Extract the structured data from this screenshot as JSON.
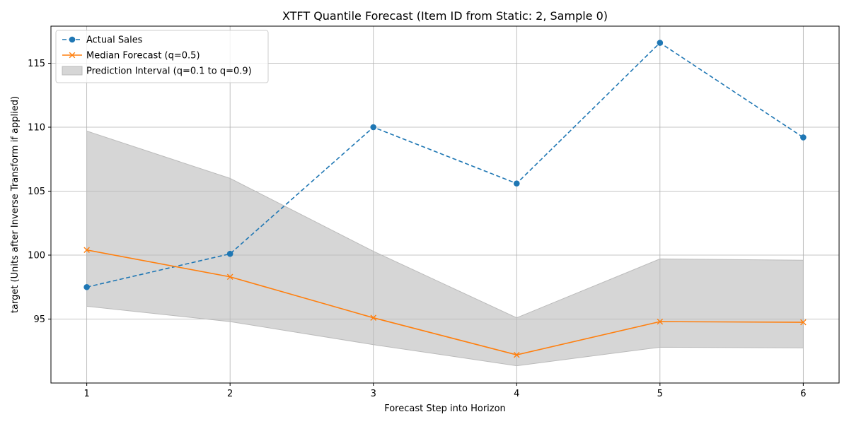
{
  "chart_data": {
    "type": "line",
    "title": "XTFT Quantile Forecast (Item ID from Static: 2, Sample 0)",
    "xlabel": "Forecast Step into Horizon",
    "ylabel": "target (Units after Inverse Transform if applied)",
    "x": [
      1,
      2,
      3,
      4,
      5,
      6
    ],
    "xlim": [
      0.75,
      6.25
    ],
    "ylim": [
      90.0,
      117.9
    ],
    "xticks": [
      "1",
      "2",
      "3",
      "4",
      "5",
      "6"
    ],
    "yticks": [
      95,
      100,
      105,
      110,
      115
    ],
    "grid": true,
    "legend_position": "top-left",
    "series": [
      {
        "name": "Actual Sales",
        "style": "dashed",
        "marker": "circle",
        "color": "#1f77b4",
        "values": [
          97.5,
          100.1,
          110.0,
          105.6,
          116.6,
          109.2
        ]
      },
      {
        "name": "Median Forecast (q=0.5)",
        "style": "solid",
        "marker": "x",
        "color": "#ff7f0e",
        "values": [
          100.4,
          98.3,
          95.1,
          92.2,
          94.8,
          94.75
        ]
      }
    ],
    "band": {
      "name": "Prediction Interval (q=0.1 to q=0.9)",
      "color": "#bbbbbb",
      "lower": [
        96.0,
        94.8,
        93.0,
        91.35,
        92.8,
        92.75
      ],
      "upper": [
        109.7,
        106.0,
        100.3,
        95.1,
        99.7,
        99.6
      ]
    }
  }
}
